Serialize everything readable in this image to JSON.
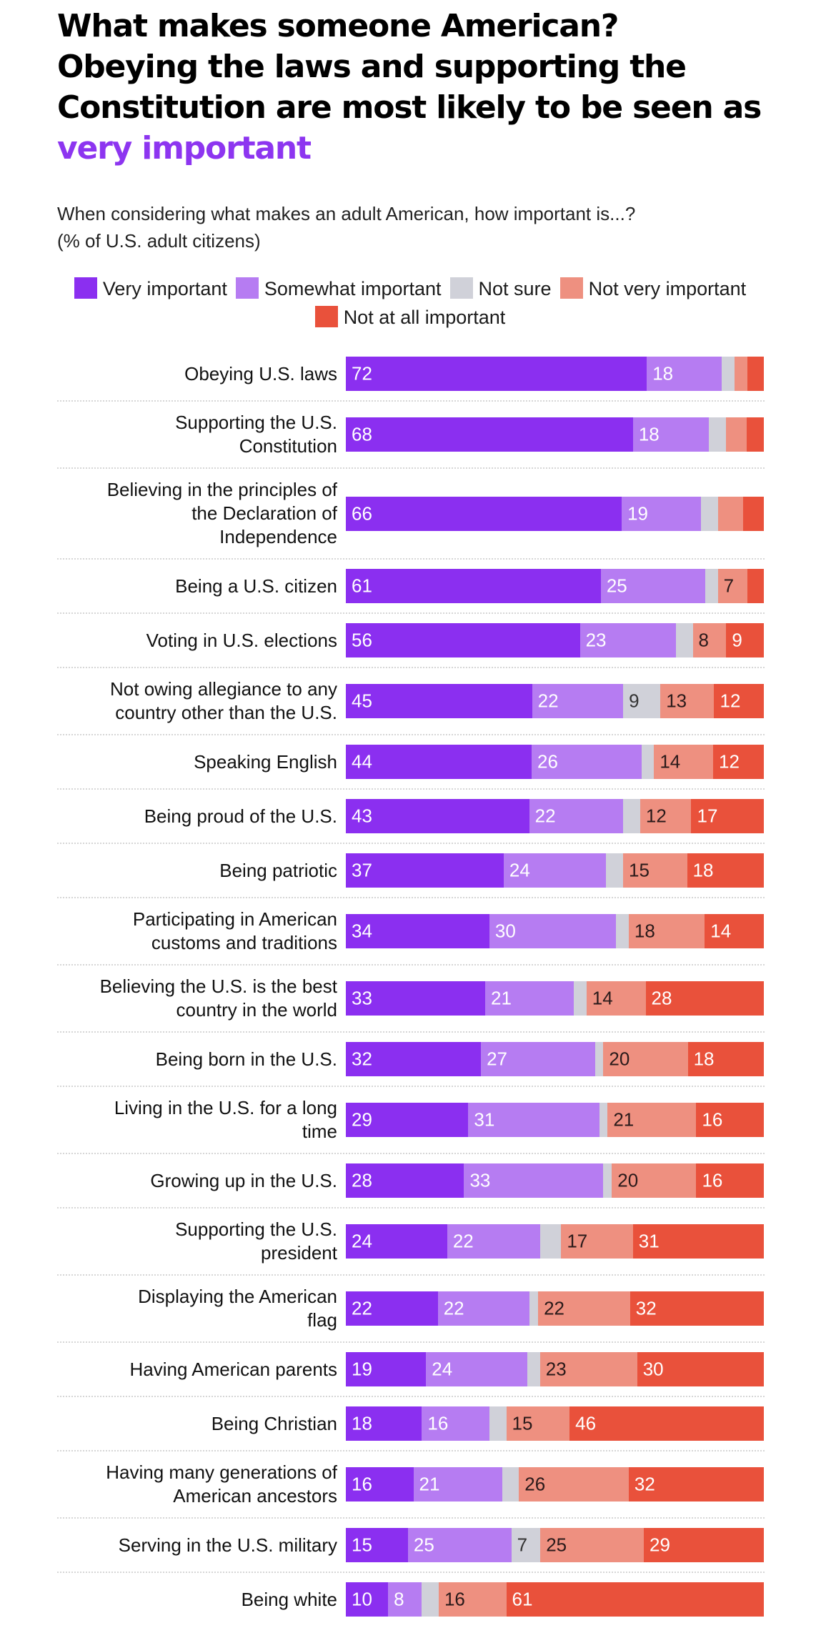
{
  "header": {
    "title_prefix": "What makes someone American? Obeying the laws and supporting the Constitution are most likely to be seen as ",
    "title_highlight": "very important",
    "subtitle_line1": "When considering what makes an adult American, how important is...?",
    "subtitle_line2": "(% of U.S. adult citizens)"
  },
  "chart_data": {
    "type": "bar",
    "orientation": "horizontal",
    "stacked": true,
    "legend_position": "top",
    "series": [
      {
        "name": "Very important",
        "color": "#8b2ff0",
        "label_color": "#ffffff",
        "values": [
          72,
          68,
          66,
          61,
          56,
          45,
          44,
          43,
          37,
          34,
          33,
          32,
          29,
          28,
          24,
          22,
          19,
          18,
          16,
          15,
          10
        ],
        "labels": [
          "72",
          "68",
          "66",
          "61",
          "56",
          "45",
          "44",
          "43",
          "37",
          "34",
          "33",
          "32",
          "29",
          "28",
          "24",
          "22",
          "19",
          "18",
          "16",
          "15",
          "10"
        ]
      },
      {
        "name": "Somewhat important",
        "color": "#b67cf2",
        "label_color": "#ffffff",
        "values": [
          18,
          18,
          19,
          25,
          23,
          22,
          26,
          22,
          24,
          30,
          21,
          27,
          31,
          33,
          22,
          22,
          24,
          16,
          21,
          25,
          8
        ],
        "labels": [
          "18",
          "18",
          "19",
          "25",
          "23",
          "22",
          "26",
          "22",
          "24",
          "30",
          "21",
          "27",
          "31",
          "33",
          "22",
          "22",
          "24",
          "16",
          "21",
          "25",
          "8"
        ]
      },
      {
        "name": "Not sure",
        "color": "#d0d1d9",
        "label_color": "#333333",
        "values": [
          3,
          4,
          4,
          3,
          4,
          9,
          3,
          4,
          4,
          3,
          3,
          2,
          2,
          2,
          5,
          2,
          3,
          4,
          4,
          7,
          4
        ],
        "labels": [
          "",
          "",
          "",
          "",
          "",
          "9",
          "",
          "",
          "",
          "",
          "",
          "",
          "",
          "",
          "",
          "",
          "",
          "",
          "",
          "7",
          ""
        ]
      },
      {
        "name": "Not very important",
        "color": "#ee9080",
        "label_color": "#2a1a1a",
        "values": [
          3,
          5,
          6,
          7,
          8,
          13,
          14,
          12,
          15,
          18,
          14,
          20,
          21,
          20,
          17,
          22,
          23,
          15,
          26,
          25,
          16
        ],
        "labels": [
          "",
          "",
          "",
          "7",
          "8",
          "13",
          "14",
          "12",
          "15",
          "18",
          "14",
          "20",
          "21",
          "20",
          "17",
          "22",
          "23",
          "15",
          "26",
          "25",
          "16"
        ]
      },
      {
        "name": "Not at all important",
        "color": "#e9513b",
        "label_color": "#ffffff",
        "values": [
          4,
          4,
          5,
          4,
          9,
          12,
          12,
          17,
          18,
          14,
          28,
          18,
          16,
          16,
          31,
          32,
          30,
          46,
          32,
          29,
          61
        ],
        "labels": [
          "",
          "",
          "",
          "",
          "9",
          "12",
          "12",
          "17",
          "18",
          "14",
          "28",
          "18",
          "16",
          "16",
          "31",
          "32",
          "30",
          "46",
          "32",
          "29",
          "61"
        ]
      }
    ],
    "categories": [
      "Obeying U.S. laws",
      "Supporting the U.S. Constitution",
      "Believing in the principles of the Declaration of Independence",
      "Being a U.S. citizen",
      "Voting in U.S. elections",
      "Not owing allegiance to any country other than the U.S.",
      "Speaking English",
      "Being proud of the U.S.",
      "Being patriotic",
      "Participating in American customs and traditions",
      "Believing the U.S. is the best country in the world",
      "Being born in the U.S.",
      "Living in the U.S. for a long time",
      "Growing up in the U.S.",
      "Supporting the U.S. president",
      "Displaying the American flag",
      "Having American parents",
      "Being Christian",
      "Having many generations of American ancestors",
      "Serving in the U.S. military",
      "Being white"
    ],
    "category_lines": [
      [
        "Obeying U.S. laws"
      ],
      [
        "Supporting the U.S.",
        "Constitution"
      ],
      [
        "Believing in the principles of",
        "the Declaration of",
        "Independence"
      ],
      [
        "Being a U.S. citizen"
      ],
      [
        "Voting in U.S. elections"
      ],
      [
        "Not owing allegiance to any",
        "country other than the U.S."
      ],
      [
        "Speaking English"
      ],
      [
        "Being proud of the U.S."
      ],
      [
        "Being patriotic"
      ],
      [
        "Participating in American",
        "customs and traditions"
      ],
      [
        "Believing the U.S. is the best",
        "country in the world"
      ],
      [
        "Being born in the U.S."
      ],
      [
        "Living in the U.S. for a long",
        "time"
      ],
      [
        "Growing up in the U.S."
      ],
      [
        "Supporting the U.S.",
        "president"
      ],
      [
        "Displaying the American",
        "flag"
      ],
      [
        "Having American parents"
      ],
      [
        "Being Christian"
      ],
      [
        "Having many generations of",
        "American ancestors"
      ],
      [
        "Serving in the U.S. military"
      ],
      [
        "Being white"
      ]
    ],
    "xlim": [
      0,
      100
    ],
    "unit": "%"
  }
}
